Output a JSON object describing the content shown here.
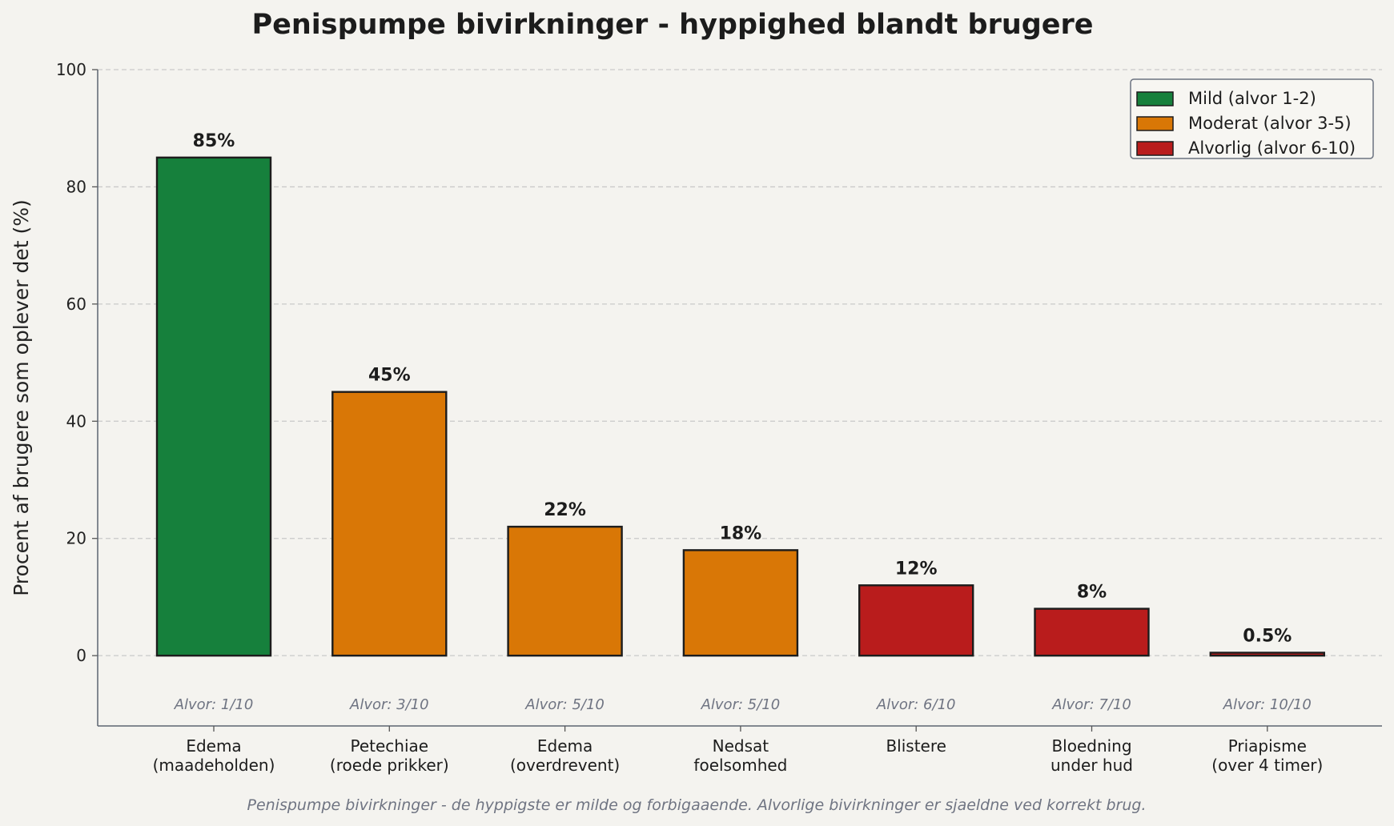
{
  "chart_data": {
    "type": "bar",
    "title": "Penispumpe bivirkninger - hyppighed blandt brugere",
    "ylabel": "Procent af brugere som oplever det (%)",
    "xlabel": "",
    "ylim": [
      -12,
      100
    ],
    "yticks": [
      0,
      20,
      40,
      60,
      80,
      100
    ],
    "grid": "horizontal-dashed",
    "legend_placement": "top-right",
    "categories": [
      [
        "Edema",
        "(maadeholden)"
      ],
      [
        "Petechiae",
        "(roede prikker)"
      ],
      [
        "Edema",
        "(overdrevent)"
      ],
      [
        "Nedsat",
        "foelsomhed"
      ],
      [
        "Blistere"
      ],
      [
        "Bloedning",
        "under hud"
      ],
      [
        "Priapisme",
        "(over 4 timer)"
      ]
    ],
    "values": [
      85,
      45,
      22,
      18,
      12,
      8,
      0.5
    ],
    "value_labels": [
      "85%",
      "45%",
      "22%",
      "18%",
      "12%",
      "8%",
      "0.5%"
    ],
    "severity_labels": [
      "Alvor: 1/10",
      "Alvor: 3/10",
      "Alvor: 5/10",
      "Alvor: 5/10",
      "Alvor: 6/10",
      "Alvor: 7/10",
      "Alvor: 10/10"
    ],
    "bar_groups": [
      "mild",
      "moderate",
      "moderate",
      "moderate",
      "severe",
      "severe",
      "severe"
    ],
    "legend": [
      {
        "key": "mild",
        "label": "Mild (alvor 1-2)",
        "color": "#16803c"
      },
      {
        "key": "moderate",
        "label": "Moderat (alvor 3-5)",
        "color": "#d97706"
      },
      {
        "key": "severe",
        "label": "Alvorlig (alvor 6-10)",
        "color": "#b91c1c"
      }
    ],
    "caption": "Penispumpe bivirkninger - de hyppigste er milde og forbigaaende. Alvorlige bivirkninger er sjaeldne ved korrekt brug."
  }
}
